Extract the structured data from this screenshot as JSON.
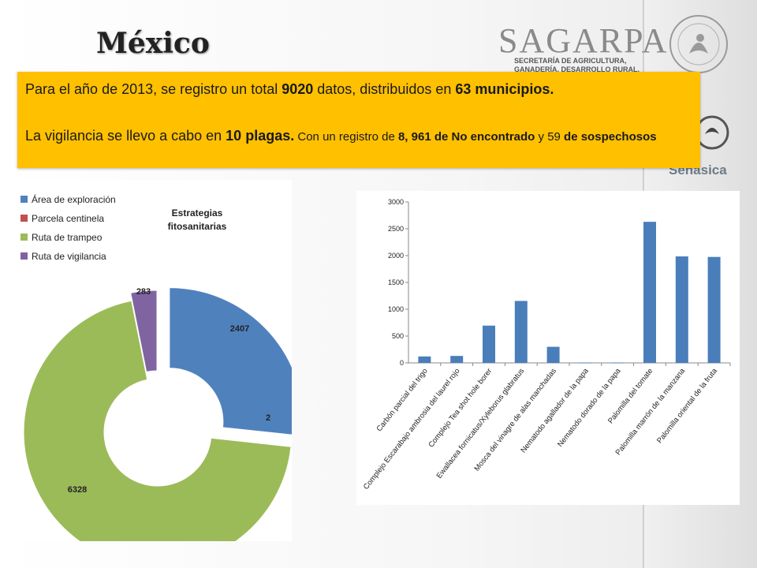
{
  "header": {
    "title": "México",
    "logo_main": "SAGARPA",
    "logo_sub": [
      "SECRETARÍA DE AGRICULTURA,",
      "GANADERÍA, DESARROLLO RURAL,"
    ],
    "senasica": "Senasica"
  },
  "banner": {
    "line1_a": "Para el año de 2013,  se registro un total ",
    "line1_b": "9020",
    "line1_c": " datos, distribuidos en  ",
    "line1_d": "63 municipios.",
    "line2_a": "La vigilancia se llevo a cabo en ",
    "line2_b": "10 plagas.",
    "line2_c": " Con un registro de ",
    "line2_d": "8, 961 de No encontrado",
    "line2_e": " y 59 ",
    "line2_f": "de sospechosos"
  },
  "colors": {
    "banner": "#ffc000",
    "bar": "#4a7ebb"
  },
  "chart_data": [
    {
      "type": "pie",
      "title": "Estrategias fitosanitarias",
      "title_lines": [
        "Estrategias",
        "fitosanitarias"
      ],
      "legend_position": "top-left",
      "categories": [
        "Área de  exploración",
        "Parcela centinela",
        "Ruta de trampeo",
        "Ruta de vigilancia"
      ],
      "values": [
        2407,
        2,
        6328,
        283
      ],
      "colors": [
        "#4f81bd",
        "#c0504d",
        "#9bbb59",
        "#8064a2"
      ]
    },
    {
      "type": "bar",
      "categories": [
        "Carbón parcial del trigo",
        "Complejo Escarabajo ambrosia del laurel rojo",
        "Complejo Tea shot hole borer",
        "Ewallacea fornicatus/Xyleborus glabratus",
        "Mosca del vinagre de alas manchadas",
        "Nematodo agallador de la papa",
        "Nematodo dorado de la papa",
        "Palomilla del tomate",
        "Palomilla marrón de la manzana",
        "Palomilla oriental de la fruta"
      ],
      "values": [
        120,
        130,
        695,
        1155,
        300,
        5,
        5,
        2630,
        1985,
        1975
      ],
      "ylim": [
        0,
        3000
      ],
      "yticks": [
        "0",
        "500",
        "1000",
        "1500",
        "2000",
        "2500",
        "3000"
      ],
      "grid": false,
      "legend": false
    }
  ]
}
